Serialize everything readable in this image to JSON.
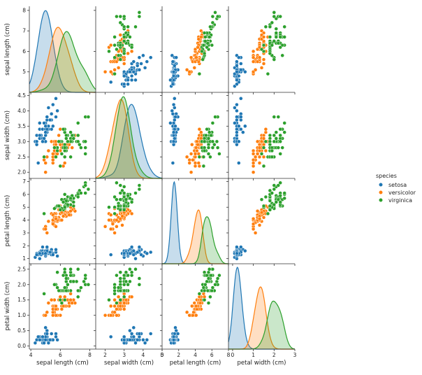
{
  "chart_data": {
    "type": "scatter",
    "variables": [
      {
        "label": "sepal length (cm)",
        "lim": [
          4.0,
          8.0
        ],
        "ticks": [
          "4",
          "6",
          "8"
        ],
        "tick_values": [
          4,
          6,
          8
        ],
        "diag_ticks": [
          "5",
          "6",
          "7",
          "8"
        ],
        "diag_tick_values": [
          5,
          6,
          7,
          8
        ]
      },
      {
        "label": "sepal width (cm)",
        "lim": [
          1.5,
          5.0
        ],
        "ticks": [
          "2.0",
          "2.5",
          "3.0",
          "3.5",
          "4.0",
          "4.5"
        ],
        "tick_values": [
          2.0,
          2.5,
          3.0,
          3.5,
          4.0,
          4.5
        ],
        "xticks": [
          "2",
          "3",
          "4",
          "5"
        ],
        "xtick_values": [
          2,
          3,
          4,
          5
        ]
      },
      {
        "label": "petal length (cm)",
        "lim": [
          0.5,
          7.5
        ],
        "ticks": [
          "1",
          "2",
          "3",
          "4",
          "5",
          "6",
          "7"
        ],
        "tick_values": [
          1,
          2,
          3,
          4,
          5,
          6,
          7
        ],
        "xticks": [
          "0",
          "2",
          "4",
          "6",
          "8"
        ],
        "xtick_values": [
          0,
          2,
          4,
          6,
          8
        ]
      },
      {
        "label": "petal width (cm)",
        "lim": [
          -0.1,
          2.7
        ],
        "ticks": [
          "0.0",
          "0.5",
          "1.0",
          "1.5",
          "2.0",
          "2.5"
        ],
        "tick_values": [
          0,
          0.5,
          1.0,
          1.5,
          2.0,
          2.5
        ],
        "xticks": [
          "0",
          "1",
          "2",
          "3"
        ],
        "xtick_values": [
          0,
          1,
          2,
          3
        ]
      }
    ],
    "legend": {
      "title": "species",
      "placement": "center-right"
    },
    "series": [
      {
        "name": "setosa",
        "color": "#1f77b4",
        "kde_peaks": [
          5.0,
          3.4,
          1.46,
          0.24
        ],
        "points": [
          [
            5.1,
            3.5,
            1.4,
            0.2
          ],
          [
            4.9,
            3.0,
            1.4,
            0.2
          ],
          [
            4.7,
            3.2,
            1.3,
            0.2
          ],
          [
            4.6,
            3.1,
            1.5,
            0.2
          ],
          [
            5.0,
            3.6,
            1.4,
            0.2
          ],
          [
            5.4,
            3.9,
            1.7,
            0.4
          ],
          [
            4.6,
            3.4,
            1.4,
            0.3
          ],
          [
            5.0,
            3.4,
            1.5,
            0.2
          ],
          [
            4.4,
            2.9,
            1.4,
            0.2
          ],
          [
            4.9,
            3.1,
            1.5,
            0.1
          ],
          [
            5.4,
            3.7,
            1.5,
            0.2
          ],
          [
            4.8,
            3.4,
            1.6,
            0.2
          ],
          [
            4.8,
            3.0,
            1.4,
            0.1
          ],
          [
            4.3,
            3.0,
            1.1,
            0.1
          ],
          [
            5.8,
            4.0,
            1.2,
            0.2
          ],
          [
            5.7,
            4.4,
            1.5,
            0.4
          ],
          [
            5.4,
            3.9,
            1.3,
            0.4
          ],
          [
            5.1,
            3.5,
            1.4,
            0.3
          ],
          [
            5.7,
            3.8,
            1.7,
            0.3
          ],
          [
            5.1,
            3.8,
            1.5,
            0.3
          ],
          [
            5.4,
            3.4,
            1.7,
            0.2
          ],
          [
            5.1,
            3.7,
            1.5,
            0.4
          ],
          [
            4.6,
            3.6,
            1.0,
            0.2
          ],
          [
            5.1,
            3.3,
            1.7,
            0.5
          ],
          [
            4.8,
            3.4,
            1.9,
            0.2
          ],
          [
            5.0,
            3.0,
            1.6,
            0.2
          ],
          [
            5.0,
            3.4,
            1.6,
            0.4
          ],
          [
            5.2,
            3.5,
            1.5,
            0.2
          ],
          [
            5.2,
            3.4,
            1.4,
            0.2
          ],
          [
            4.7,
            3.2,
            1.6,
            0.2
          ],
          [
            4.8,
            3.1,
            1.6,
            0.2
          ],
          [
            5.4,
            3.4,
            1.5,
            0.4
          ],
          [
            5.2,
            4.1,
            1.5,
            0.1
          ],
          [
            5.5,
            4.2,
            1.4,
            0.2
          ],
          [
            4.9,
            3.1,
            1.5,
            0.2
          ],
          [
            5.0,
            3.2,
            1.2,
            0.2
          ],
          [
            5.5,
            3.5,
            1.3,
            0.2
          ],
          [
            4.9,
            3.6,
            1.4,
            0.1
          ],
          [
            4.4,
            3.0,
            1.3,
            0.2
          ],
          [
            5.1,
            3.4,
            1.5,
            0.2
          ],
          [
            5.0,
            3.5,
            1.3,
            0.3
          ],
          [
            4.5,
            2.3,
            1.3,
            0.3
          ],
          [
            4.4,
            3.2,
            1.3,
            0.2
          ],
          [
            5.0,
            3.5,
            1.6,
            0.6
          ],
          [
            5.1,
            3.8,
            1.9,
            0.4
          ],
          [
            4.8,
            3.0,
            1.4,
            0.3
          ],
          [
            5.1,
            3.8,
            1.6,
            0.2
          ],
          [
            4.6,
            3.2,
            1.4,
            0.2
          ],
          [
            5.3,
            3.7,
            1.5,
            0.2
          ],
          [
            5.0,
            3.3,
            1.4,
            0.2
          ]
        ]
      },
      {
        "name": "versicolor",
        "color": "#ff7f0e",
        "kde_peaks": [
          5.9,
          2.8,
          4.3,
          1.3
        ],
        "points": [
          [
            7.0,
            3.2,
            4.7,
            1.4
          ],
          [
            6.4,
            3.2,
            4.5,
            1.5
          ],
          [
            6.9,
            3.1,
            4.9,
            1.5
          ],
          [
            5.5,
            2.3,
            4.0,
            1.3
          ],
          [
            6.5,
            2.8,
            4.6,
            1.5
          ],
          [
            5.7,
            2.8,
            4.5,
            1.3
          ],
          [
            6.3,
            3.3,
            4.7,
            1.6
          ],
          [
            4.9,
            2.4,
            3.3,
            1.0
          ],
          [
            6.6,
            2.9,
            4.6,
            1.3
          ],
          [
            5.2,
            2.7,
            3.9,
            1.4
          ],
          [
            5.0,
            2.0,
            3.5,
            1.0
          ],
          [
            5.9,
            3.0,
            4.2,
            1.5
          ],
          [
            6.0,
            2.2,
            4.0,
            1.0
          ],
          [
            6.1,
            2.9,
            4.7,
            1.4
          ],
          [
            5.6,
            2.9,
            3.6,
            1.3
          ],
          [
            6.7,
            3.1,
            4.4,
            1.4
          ],
          [
            5.6,
            3.0,
            4.5,
            1.5
          ],
          [
            5.8,
            2.7,
            4.1,
            1.0
          ],
          [
            6.2,
            2.2,
            4.5,
            1.5
          ],
          [
            5.6,
            2.5,
            3.9,
            1.1
          ],
          [
            5.9,
            3.2,
            4.8,
            1.8
          ],
          [
            6.1,
            2.8,
            4.0,
            1.3
          ],
          [
            6.3,
            2.5,
            4.9,
            1.5
          ],
          [
            6.1,
            2.8,
            4.7,
            1.2
          ],
          [
            6.4,
            2.9,
            4.3,
            1.3
          ],
          [
            6.6,
            3.0,
            4.4,
            1.4
          ],
          [
            6.8,
            2.8,
            4.8,
            1.4
          ],
          [
            6.7,
            3.0,
            5.0,
            1.7
          ],
          [
            6.0,
            2.9,
            4.5,
            1.5
          ],
          [
            5.7,
            2.6,
            3.5,
            1.0
          ],
          [
            5.5,
            2.4,
            3.8,
            1.1
          ],
          [
            5.5,
            2.4,
            3.7,
            1.0
          ],
          [
            5.8,
            2.7,
            3.9,
            1.2
          ],
          [
            6.0,
            2.7,
            5.1,
            1.6
          ],
          [
            5.4,
            3.0,
            4.5,
            1.5
          ],
          [
            6.0,
            3.4,
            4.5,
            1.6
          ],
          [
            6.7,
            3.1,
            4.7,
            1.5
          ],
          [
            6.3,
            2.3,
            4.4,
            1.3
          ],
          [
            5.6,
            3.0,
            4.1,
            1.3
          ],
          [
            5.5,
            2.5,
            4.0,
            1.3
          ],
          [
            5.5,
            2.6,
            4.4,
            1.2
          ],
          [
            6.1,
            3.0,
            4.6,
            1.4
          ],
          [
            5.8,
            2.6,
            4.0,
            1.2
          ],
          [
            5.0,
            2.3,
            3.3,
            1.0
          ],
          [
            5.6,
            2.7,
            4.2,
            1.3
          ],
          [
            5.7,
            3.0,
            4.2,
            1.2
          ],
          [
            5.7,
            2.9,
            4.2,
            1.3
          ],
          [
            6.2,
            2.9,
            4.3,
            1.3
          ],
          [
            5.1,
            2.5,
            3.0,
            1.1
          ],
          [
            5.7,
            2.8,
            4.1,
            1.3
          ]
        ]
      },
      {
        "name": "virginica",
        "color": "#2ca02c",
        "kde_peaks": [
          6.5,
          3.0,
          5.5,
          2.0
        ],
        "points": [
          [
            6.3,
            3.3,
            6.0,
            2.5
          ],
          [
            5.8,
            2.7,
            5.1,
            1.9
          ],
          [
            7.1,
            3.0,
            5.9,
            2.1
          ],
          [
            6.3,
            2.9,
            5.6,
            1.8
          ],
          [
            6.5,
            3.0,
            5.8,
            2.2
          ],
          [
            7.6,
            3.0,
            6.6,
            2.1
          ],
          [
            4.9,
            2.5,
            4.5,
            1.7
          ],
          [
            7.3,
            2.9,
            6.3,
            1.8
          ],
          [
            6.7,
            2.5,
            5.8,
            1.8
          ],
          [
            7.2,
            3.6,
            6.1,
            2.5
          ],
          [
            6.5,
            3.2,
            5.1,
            2.0
          ],
          [
            6.4,
            2.7,
            5.3,
            1.9
          ],
          [
            6.8,
            3.0,
            5.5,
            2.1
          ],
          [
            5.7,
            2.5,
            5.0,
            2.0
          ],
          [
            5.8,
            2.8,
            5.1,
            2.4
          ],
          [
            6.4,
            3.2,
            5.3,
            2.3
          ],
          [
            6.5,
            3.0,
            5.5,
            1.8
          ],
          [
            7.7,
            3.8,
            6.7,
            2.2
          ],
          [
            7.7,
            2.6,
            6.9,
            2.3
          ],
          [
            6.0,
            2.2,
            5.0,
            1.5
          ],
          [
            6.9,
            3.2,
            5.7,
            2.3
          ],
          [
            5.6,
            2.8,
            4.9,
            2.0
          ],
          [
            7.7,
            2.8,
            6.7,
            2.0
          ],
          [
            6.3,
            2.7,
            4.9,
            1.8
          ],
          [
            6.7,
            3.3,
            5.7,
            2.1
          ],
          [
            7.2,
            3.2,
            6.0,
            1.8
          ],
          [
            6.2,
            2.8,
            4.8,
            1.8
          ],
          [
            6.1,
            3.0,
            4.9,
            1.8
          ],
          [
            6.4,
            2.8,
            5.6,
            2.1
          ],
          [
            7.2,
            3.0,
            5.8,
            1.6
          ],
          [
            7.4,
            2.8,
            6.1,
            1.9
          ],
          [
            7.9,
            3.8,
            6.4,
            2.0
          ],
          [
            6.4,
            2.8,
            5.6,
            2.2
          ],
          [
            6.3,
            2.8,
            5.1,
            1.5
          ],
          [
            6.1,
            2.6,
            5.6,
            1.4
          ],
          [
            7.7,
            3.0,
            6.1,
            2.3
          ],
          [
            6.3,
            3.4,
            5.6,
            2.4
          ],
          [
            6.4,
            3.1,
            5.5,
            1.8
          ],
          [
            6.0,
            3.0,
            4.8,
            1.8
          ],
          [
            6.9,
            3.1,
            5.4,
            2.1
          ],
          [
            6.7,
            3.1,
            5.6,
            2.4
          ],
          [
            6.9,
            3.1,
            5.1,
            2.3
          ],
          [
            5.8,
            2.7,
            5.1,
            1.9
          ],
          [
            6.8,
            3.2,
            5.9,
            2.3
          ],
          [
            6.7,
            3.3,
            5.7,
            2.5
          ],
          [
            6.7,
            3.0,
            5.2,
            2.3
          ],
          [
            6.3,
            2.5,
            5.0,
            1.9
          ],
          [
            6.5,
            3.0,
            5.2,
            2.0
          ],
          [
            6.2,
            3.4,
            5.4,
            2.3
          ],
          [
            5.9,
            3.0,
            5.1,
            1.8
          ]
        ]
      }
    ]
  }
}
